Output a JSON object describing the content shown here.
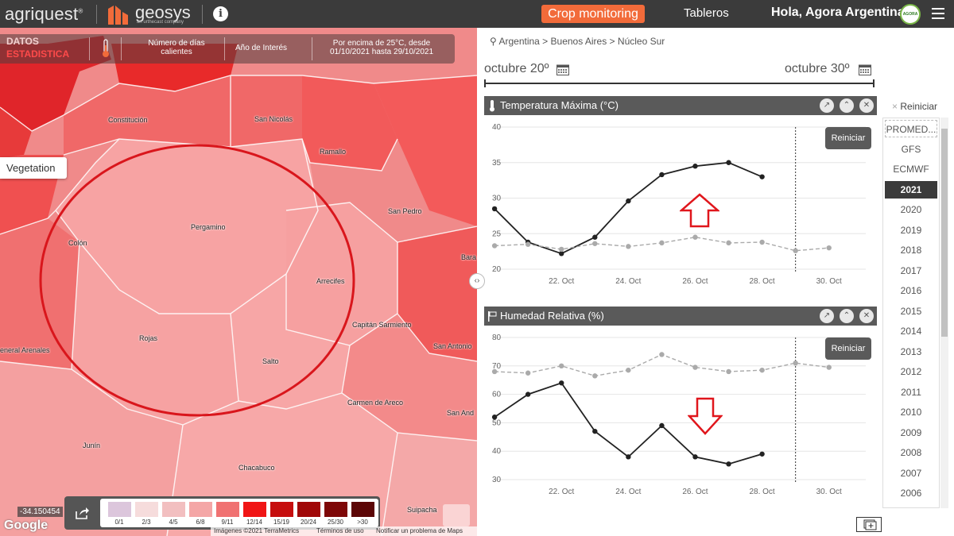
{
  "header": {
    "logo_agriquest": "agriquest",
    "logo_geosys": "geosys",
    "logo_geosys_sub": "an urthecast company",
    "crop_monitoring": "Crop monitoring",
    "tableros": "Tableros",
    "greeting": "Hola, Agora Argentina",
    "avatar_text": "AGORA"
  },
  "map": {
    "datos": "DATOS",
    "estadistica": "ESTADISTICA",
    "metric": "Número de días calientes",
    "year_of_interest": "Año de Interés",
    "condition": "Por encima de 25°C, desde 01/10/2021 hasta 29/10/2021",
    "vegetation_btn": "Vegetation",
    "coordinate": "-34.150454",
    "google": "Google",
    "footer_imagery": "Imágenes ©2021 TerraMetrics",
    "footer_terms": "Términos de uso",
    "footer_report": "Notificar un problema de Maps",
    "cities": [
      {
        "name": "Constitución"
      },
      {
        "name": "San Nicolás"
      },
      {
        "name": "Ramallo"
      },
      {
        "name": "San Pedro"
      },
      {
        "name": "Pergamino"
      },
      {
        "name": "Colón"
      },
      {
        "name": "Arrecifes"
      },
      {
        "name": "Capitán Sarmiento"
      },
      {
        "name": "San Antonio"
      },
      {
        "name": "Rojas"
      },
      {
        "name": "Salto"
      },
      {
        "name": "eneral Arenales"
      },
      {
        "name": "Carmen de Areco"
      },
      {
        "name": "San And"
      },
      {
        "name": "Junín"
      },
      {
        "name": "Chacabuco"
      },
      {
        "name": "Suipacha"
      },
      {
        "name": "Bara"
      }
    ],
    "legend": [
      {
        "label": "0/1",
        "color": "#dcc6dc"
      },
      {
        "label": "2/3",
        "color": "#f6dcdc"
      },
      {
        "label": "4/5",
        "color": "#f2bfc0"
      },
      {
        "label": "6/8",
        "color": "#f4a6a6"
      },
      {
        "label": "9/11",
        "color": "#f07272"
      },
      {
        "label": "12/14",
        "color": "#f01515"
      },
      {
        "label": "15/19",
        "color": "#c60e0e"
      },
      {
        "label": "20/24",
        "color": "#a00808"
      },
      {
        "label": "25/30",
        "color": "#7e0707"
      },
      {
        "label": ">30",
        "color": "#5c0606"
      }
    ]
  },
  "panel": {
    "breadcrumb": "Argentina > Buenos Aires > Núcleo Sur",
    "date_start": "octubre 20º",
    "date_end": "octubre 30º",
    "reset_all": "Reiniciar",
    "reset_chart": "Reiniciar",
    "add_chart_icon": "add-chart-icon"
  },
  "years": [
    "PROMED...",
    "GFS",
    "ECMWF",
    "2021",
    "2020",
    "2019",
    "2018",
    "2017",
    "2016",
    "2015",
    "2014",
    "2013",
    "2012",
    "2011",
    "2010",
    "2009",
    "2008",
    "2007",
    "2006"
  ],
  "active_year": "2021",
  "chart_data": [
    {
      "type": "line",
      "title": "Temperatura Máxima (°C)",
      "ylim": [
        20,
        40
      ],
      "yticks": [
        20,
        25,
        30,
        35,
        40
      ],
      "x": [
        20,
        21,
        22,
        23,
        24,
        25,
        26,
        27,
        28,
        29,
        30
      ],
      "xticks": [
        "22. Oct",
        "24. Oct",
        "26. Oct",
        "28. Oct",
        "30. Oct"
      ],
      "xtick_positions": [
        22,
        24,
        26,
        28,
        30
      ],
      "forecast_line_at": 29,
      "series": [
        {
          "style": "solid",
          "color": "#222222",
          "values": [
            28.5,
            23.8,
            22.2,
            24.5,
            29.6,
            33.3,
            34.5,
            35.0,
            33.0,
            null,
            null
          ]
        },
        {
          "style": "dashed",
          "color": "#aaaaaa",
          "values": [
            23.3,
            23.5,
            22.8,
            23.6,
            23.2,
            23.7,
            24.5,
            23.7,
            23.8,
            22.6,
            23.0
          ]
        }
      ],
      "annotation": "up-arrow"
    },
    {
      "type": "line",
      "title": "Humedad Relativa (%)",
      "ylim": [
        30,
        80
      ],
      "yticks": [
        30,
        40,
        50,
        60,
        70,
        80
      ],
      "x": [
        20,
        21,
        22,
        23,
        24,
        25,
        26,
        27,
        28,
        29,
        30
      ],
      "xticks": [
        "22. Oct",
        "24. Oct",
        "26. Oct",
        "28. Oct",
        "30. Oct"
      ],
      "xtick_positions": [
        22,
        24,
        26,
        28,
        30
      ],
      "forecast_line_at": 29,
      "series": [
        {
          "style": "solid",
          "color": "#222222",
          "values": [
            52,
            60,
            64,
            47,
            38,
            49,
            38,
            35.5,
            39,
            null,
            null
          ]
        },
        {
          "style": "dashed",
          "color": "#aaaaaa",
          "values": [
            68,
            67.5,
            70,
            66.5,
            68.5,
            74,
            69.5,
            68,
            68.5,
            71,
            69.5
          ]
        }
      ],
      "annotation": "down-arrow"
    }
  ]
}
